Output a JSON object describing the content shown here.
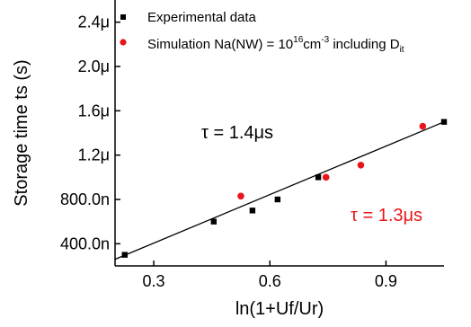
{
  "chart_data": {
    "type": "scatter",
    "xlabel": "ln(1+Uf/Ur)",
    "ylabel": "Storage time ts (s)",
    "xlim": [
      0.2,
      1.05
    ],
    "ylim": [
      2e-07,
      2.6e-06
    ],
    "x_ticks": [
      {
        "value": 0.3,
        "label": "0.3"
      },
      {
        "value": 0.6,
        "label": "0.6"
      },
      {
        "value": 0.9,
        "label": "0.9"
      }
    ],
    "y_ticks": [
      {
        "value": 4e-07,
        "label": "400.0n"
      },
      {
        "value": 8e-07,
        "label": "800.0n"
      },
      {
        "value": 1.2e-06,
        "label": "1.2μ"
      },
      {
        "value": 1.6e-06,
        "label": "1.6μ"
      },
      {
        "value": 2e-06,
        "label": "2.0μ"
      },
      {
        "value": 2.4e-06,
        "label": "2.4μ"
      }
    ],
    "series": [
      {
        "name": "Experimental data",
        "marker": "square",
        "color": "#000000",
        "x": [
          0.225,
          0.455,
          0.555,
          0.62,
          0.725,
          1.05
        ],
        "y": [
          3e-07,
          6e-07,
          7e-07,
          8e-07,
          1e-06,
          1.5e-06
        ]
      },
      {
        "name": "Simulation Na(NW) = 10^16 cm^-3 including D_it",
        "marker": "circle",
        "color": "#e8161b",
        "x": [
          0.525,
          0.745,
          0.835,
          0.995
        ],
        "y": [
          8.3e-07,
          1e-06,
          1.11e-06,
          1.46e-06
        ]
      }
    ],
    "fit_line": {
      "color": "#000000",
      "x": [
        0.2,
        1.05
      ],
      "y": [
        2.6e-07,
        1.5e-06
      ]
    },
    "legend": {
      "position": "top-left",
      "entry1": "Experimental data",
      "entry2_prefix": "Simulation Na(NW) = 10",
      "entry2_exp": "16",
      "entry2_mid": "cm",
      "entry2_exp2": "-3",
      "entry2_after": " including D",
      "entry2_sub": "it"
    },
    "annotations": [
      {
        "text": "τ = 1.4μs",
        "color": "#000000"
      },
      {
        "text": "τ = 1.3μs",
        "color": "#e8161b"
      }
    ],
    "grid": false
  }
}
